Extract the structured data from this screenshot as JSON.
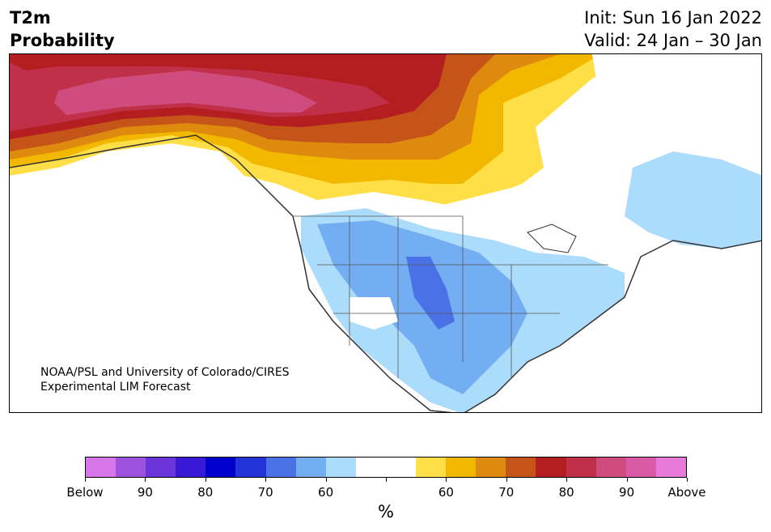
{
  "header": {
    "title_line1": "T2m",
    "title_line2": "Probability",
    "init_text": "Init: Sun 16 Jan 2022",
    "valid_text": "Valid: 24 Jan – 30 Jan"
  },
  "map": {
    "credit_line1": "NOAA/PSL and University of Colorado/CIRES",
    "credit_line2": "Experimental LIM Forecast"
  },
  "colorbar": {
    "colors": [
      "#d676e8",
      "#9c52dc",
      "#6a34d8",
      "#3719d6",
      "#0000cc",
      "#2233d8",
      "#4a72e6",
      "#74aef2",
      "#acdcfb",
      "#ffffff",
      "#ffffff",
      "#ffdf48",
      "#f2b800",
      "#dd8a0f",
      "#c55418",
      "#b51e20",
      "#c03048",
      "#cf4c7f",
      "#d95aa6",
      "#e77ad9"
    ],
    "tick_labels": [
      "Below",
      "90",
      "80",
      "70",
      "60",
      "",
      "60",
      "70",
      "80",
      "90",
      "Above"
    ],
    "unit_label": "%"
  }
}
